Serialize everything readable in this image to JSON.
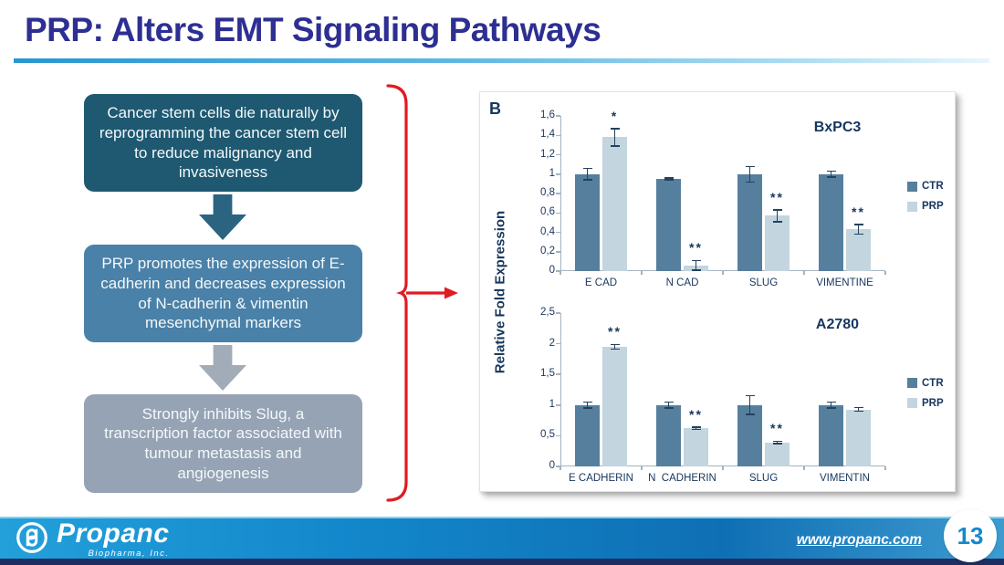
{
  "slide": {
    "title": "PRP: Alters EMT Signaling Pathways",
    "page_number": "13",
    "website": "www.propanc.com"
  },
  "flow": {
    "boxes": [
      {
        "text": "Cancer stem cells die naturally by reprogramming the cancer stem cell to reduce malignancy and invasiveness",
        "color": "#1e5971"
      },
      {
        "text": "PRP promotes the expression of E-cadherin and decreases expression of N-cadherin & vimentin mesenchymal markers",
        "color": "#4a81a8"
      },
      {
        "text": "Strongly inhibits Slug, a transcription factor associated with tumour metastasis and angiogenesis",
        "color": "#95a3b4"
      }
    ],
    "arrow_colors": [
      "#2a6480",
      "#a2acb8"
    ],
    "bracket_color": "#e01b22"
  },
  "logo": {
    "name": "Propanc",
    "subtitle": "Biopharma, Inc."
  },
  "figure": {
    "panel_label": "B",
    "y_axis_label": "Relative Fold Expression",
    "colors": {
      "ctr": "#567f9e",
      "prp": "#c3d5de",
      "error": "#24415e",
      "axis": "#a3b4c1",
      "text": "#17365d"
    }
  },
  "chart_data": [
    {
      "type": "bar",
      "title": "BxPC3",
      "categories": [
        "E CAD",
        "N CAD",
        "SLUG",
        "VIMENTINE"
      ],
      "series": [
        {
          "name": "CTR",
          "values": [
            1.0,
            0.95,
            1.0,
            1.0
          ],
          "errors": [
            0.06,
            0.01,
            0.08,
            0.03
          ],
          "color": "#567f9e"
        },
        {
          "name": "PRP",
          "values": [
            1.38,
            0.06,
            0.57,
            0.43
          ],
          "errors": [
            0.09,
            0.05,
            0.06,
            0.05
          ],
          "color": "#c3d5de"
        }
      ],
      "significance": [
        "*",
        "**",
        "**",
        "**"
      ],
      "ylabel": "Relative Fold Expression",
      "ylim": [
        0,
        1.6
      ],
      "yticks": [
        0,
        0.2,
        0.4,
        0.6,
        0.8,
        1,
        1.2,
        1.4,
        1.6
      ],
      "ytick_labels": [
        "0",
        "0,2",
        "0,4",
        "0,6",
        "0,8",
        "1",
        "1,2",
        "1,4",
        "1,6"
      ],
      "legend": [
        "CTR",
        "PRP"
      ],
      "legend_position": "right",
      "grid": false
    },
    {
      "type": "bar",
      "title": "A2780",
      "categories": [
        "E CADHERIN",
        "N  CADHERIN",
        "SLUG",
        "VIMENTIN"
      ],
      "series": [
        {
          "name": "CTR",
          "values": [
            1.0,
            1.0,
            1.0,
            1.0
          ],
          "errors": [
            0.05,
            0.05,
            0.15,
            0.05
          ],
          "color": "#567f9e"
        },
        {
          "name": "PRP",
          "values": [
            1.95,
            0.62,
            0.39,
            0.93
          ],
          "errors": [
            0.04,
            0.02,
            0.02,
            0.03
          ],
          "color": "#c3d5de"
        }
      ],
      "significance": [
        "**",
        "**",
        "**",
        ""
      ],
      "ylabel": "Relative Fold Expression",
      "ylim": [
        0,
        2.5
      ],
      "yticks": [
        0,
        0.5,
        1,
        1.5,
        2,
        2.5
      ],
      "ytick_labels": [
        "0",
        "0,5",
        "1",
        "1,5",
        "2",
        "2,5"
      ],
      "legend": [
        "CTR",
        "PRP"
      ],
      "legend_position": "right",
      "grid": false
    }
  ]
}
